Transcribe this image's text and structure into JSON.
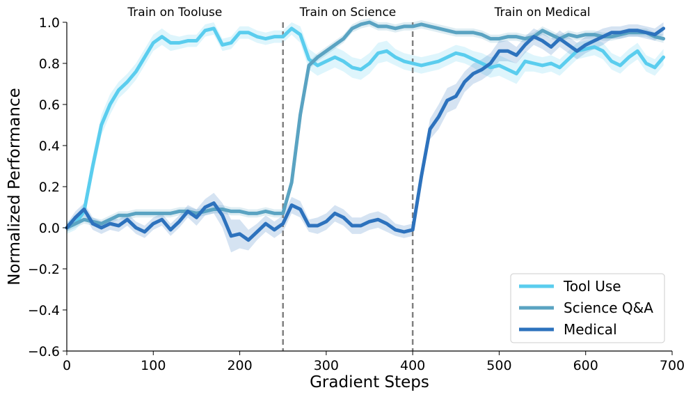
{
  "chart_data": {
    "type": "line",
    "xlabel": "Gradient Steps",
    "ylabel": "Normalized Performance",
    "xlim": [
      0,
      700
    ],
    "ylim": [
      -0.6,
      1.0
    ],
    "xticks": [
      "0",
      "100",
      "200",
      "300",
      "400",
      "500",
      "600",
      "700"
    ],
    "yticks": [
      "−0.6",
      "−0.4",
      "−0.2",
      "0.0",
      "0.2",
      "0.4",
      "0.6",
      "0.8",
      "1.0"
    ],
    "grid": false,
    "legend_position": "bottom-right",
    "phase_boundaries": [
      250,
      400
    ],
    "phase_labels": [
      {
        "text": "Train on Tooluse",
        "x": 125
      },
      {
        "text": "Train on Science",
        "x": 325
      },
      {
        "text": "Train on Medical",
        "x": 550
      }
    ],
    "x": [
      0,
      10,
      20,
      30,
      40,
      50,
      60,
      70,
      80,
      90,
      100,
      110,
      120,
      130,
      140,
      150,
      160,
      170,
      180,
      190,
      200,
      210,
      220,
      230,
      240,
      250,
      260,
      270,
      280,
      290,
      300,
      310,
      320,
      330,
      340,
      350,
      360,
      370,
      380,
      390,
      400,
      410,
      420,
      430,
      440,
      450,
      460,
      470,
      480,
      490,
      500,
      510,
      520,
      530,
      540,
      550,
      560,
      570,
      580,
      590,
      600,
      610,
      620,
      630,
      640,
      650,
      660,
      670,
      680,
      690
    ],
    "series": [
      {
        "name": "Tool Use",
        "color": "#5acdee",
        "values": [
          0.0,
          0.02,
          0.08,
          0.3,
          0.5,
          0.6,
          0.67,
          0.71,
          0.76,
          0.83,
          0.9,
          0.93,
          0.9,
          0.9,
          0.91,
          0.91,
          0.96,
          0.97,
          0.89,
          0.9,
          0.95,
          0.95,
          0.93,
          0.92,
          0.93,
          0.93,
          0.97,
          0.94,
          0.82,
          0.79,
          0.81,
          0.83,
          0.81,
          0.78,
          0.77,
          0.8,
          0.85,
          0.86,
          0.83,
          0.81,
          0.8,
          0.79,
          0.8,
          0.81,
          0.83,
          0.85,
          0.84,
          0.82,
          0.8,
          0.78,
          0.79,
          0.77,
          0.75,
          0.81,
          0.8,
          0.79,
          0.8,
          0.78,
          0.82,
          0.86,
          0.87,
          0.88,
          0.86,
          0.81,
          0.79,
          0.83,
          0.86,
          0.8,
          0.78,
          0.83
        ],
        "band": [
          0.03,
          0.03,
          0.04,
          0.05,
          0.05,
          0.05,
          0.04,
          0.04,
          0.04,
          0.04,
          0.04,
          0.04,
          0.04,
          0.03,
          0.03,
          0.03,
          0.03,
          0.03,
          0.03,
          0.03,
          0.03,
          0.03,
          0.03,
          0.03,
          0.03,
          0.03,
          0.03,
          0.04,
          0.05,
          0.05,
          0.05,
          0.05,
          0.05,
          0.05,
          0.05,
          0.05,
          0.05,
          0.05,
          0.04,
          0.04,
          0.04,
          0.04,
          0.04,
          0.04,
          0.04,
          0.04,
          0.04,
          0.04,
          0.05,
          0.05,
          0.05,
          0.05,
          0.05,
          0.05,
          0.04,
          0.04,
          0.04,
          0.04,
          0.04,
          0.04,
          0.04,
          0.04,
          0.04,
          0.04,
          0.04,
          0.04,
          0.04,
          0.04,
          0.04,
          0.04
        ]
      },
      {
        "name": "Science Q&A",
        "color": "#5aa3c2",
        "values": [
          0.0,
          0.02,
          0.04,
          0.03,
          0.02,
          0.04,
          0.06,
          0.06,
          0.07,
          0.07,
          0.07,
          0.07,
          0.07,
          0.08,
          0.08,
          0.07,
          0.08,
          0.09,
          0.09,
          0.08,
          0.08,
          0.07,
          0.07,
          0.08,
          0.07,
          0.07,
          0.22,
          0.55,
          0.79,
          0.83,
          0.86,
          0.89,
          0.92,
          0.97,
          0.99,
          1.0,
          0.98,
          0.98,
          0.97,
          0.98,
          0.98,
          0.99,
          0.98,
          0.97,
          0.96,
          0.95,
          0.95,
          0.95,
          0.94,
          0.92,
          0.92,
          0.93,
          0.93,
          0.92,
          0.93,
          0.96,
          0.94,
          0.92,
          0.94,
          0.93,
          0.94,
          0.94,
          0.93,
          0.93,
          0.94,
          0.95,
          0.95,
          0.95,
          0.93,
          0.92
        ],
        "band": [
          0.02,
          0.02,
          0.02,
          0.02,
          0.02,
          0.02,
          0.02,
          0.02,
          0.02,
          0.02,
          0.02,
          0.02,
          0.02,
          0.02,
          0.02,
          0.02,
          0.02,
          0.02,
          0.02,
          0.02,
          0.02,
          0.02,
          0.02,
          0.02,
          0.02,
          0.02,
          0.02,
          0.02,
          0.02,
          0.02,
          0.02,
          0.02,
          0.02,
          0.02,
          0.02,
          0.02,
          0.02,
          0.02,
          0.02,
          0.02,
          0.02,
          0.02,
          0.02,
          0.02,
          0.02,
          0.02,
          0.02,
          0.02,
          0.02,
          0.02,
          0.02,
          0.02,
          0.02,
          0.02,
          0.02,
          0.02,
          0.02,
          0.02,
          0.02,
          0.02,
          0.02,
          0.02,
          0.02,
          0.02,
          0.02,
          0.02,
          0.02,
          0.02,
          0.02,
          0.02
        ]
      },
      {
        "name": "Medical",
        "color": "#2d72bd",
        "values": [
          0.0,
          0.05,
          0.09,
          0.02,
          0.0,
          0.02,
          0.01,
          0.04,
          0.0,
          -0.02,
          0.02,
          0.04,
          -0.01,
          0.03,
          0.08,
          0.05,
          0.1,
          0.12,
          0.06,
          -0.04,
          -0.03,
          -0.06,
          -0.02,
          0.02,
          -0.01,
          0.02,
          0.11,
          0.09,
          0.01,
          0.01,
          0.03,
          0.07,
          0.05,
          0.01,
          0.01,
          0.03,
          0.04,
          0.02,
          -0.01,
          -0.02,
          -0.01,
          0.25,
          0.48,
          0.54,
          0.62,
          0.64,
          0.71,
          0.75,
          0.77,
          0.8,
          0.86,
          0.86,
          0.84,
          0.89,
          0.93,
          0.91,
          0.88,
          0.92,
          0.89,
          0.86,
          0.89,
          0.91,
          0.93,
          0.95,
          0.95,
          0.96,
          0.96,
          0.95,
          0.94,
          0.97
        ],
        "band": [
          0.02,
          0.03,
          0.03,
          0.03,
          0.03,
          0.03,
          0.03,
          0.03,
          0.03,
          0.03,
          0.03,
          0.03,
          0.03,
          0.03,
          0.03,
          0.04,
          0.04,
          0.05,
          0.06,
          0.08,
          0.07,
          0.05,
          0.04,
          0.04,
          0.04,
          0.04,
          0.04,
          0.04,
          0.03,
          0.04,
          0.04,
          0.04,
          0.04,
          0.04,
          0.04,
          0.04,
          0.04,
          0.04,
          0.03,
          0.03,
          0.03,
          0.04,
          0.05,
          0.06,
          0.06,
          0.06,
          0.05,
          0.05,
          0.05,
          0.05,
          0.05,
          0.05,
          0.04,
          0.04,
          0.04,
          0.04,
          0.04,
          0.04,
          0.04,
          0.04,
          0.04,
          0.04,
          0.04,
          0.03,
          0.03,
          0.03,
          0.03,
          0.03,
          0.03,
          0.03
        ]
      }
    ]
  }
}
